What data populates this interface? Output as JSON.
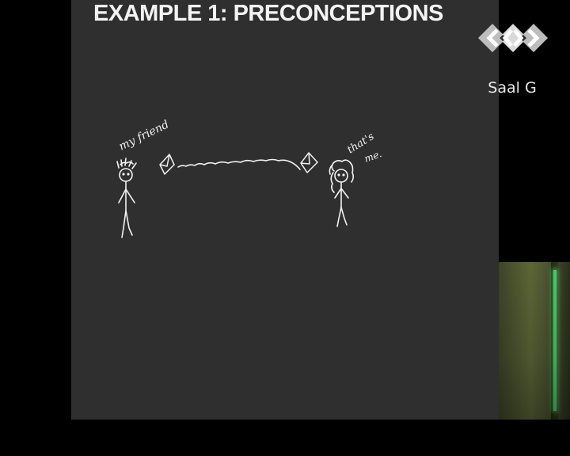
{
  "slide": {
    "title": "EXAMPLE 1:  PRECONCEPTIONS",
    "annotations": {
      "left": "my friend",
      "right_line1": "that's",
      "right_line2": "me."
    },
    "background_color": "#2f2f2f",
    "ink_color": "#f2f2f2"
  },
  "logo": {
    "icon": "diamond-brackets-logo-icon",
    "label": "Saal G"
  },
  "camera": {
    "accent_color": "#4ec96a"
  }
}
